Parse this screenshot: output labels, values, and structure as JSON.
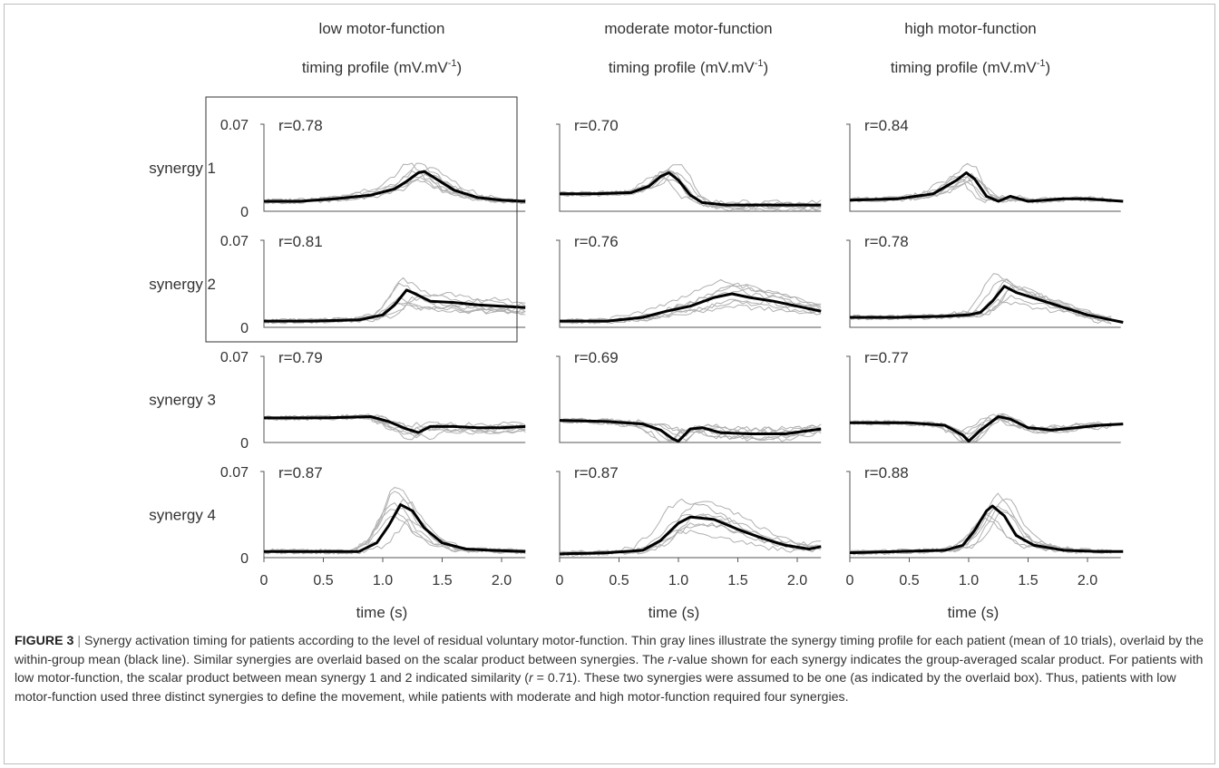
{
  "chart_data": {
    "type": "line",
    "columns": [
      {
        "title_line1": "low motor-function",
        "title_line2": "timing profile (mV.mV",
        "title_sup": "-1",
        "title_close": ")"
      },
      {
        "title_line1": "moderate motor-function",
        "title_line2": "timing profile (mV.mV",
        "title_sup": "-1",
        "title_close": ")"
      },
      {
        "title_line1": "high motor-function",
        "title_line2": "timing profile (mV.mV",
        "title_sup": "-1",
        "title_close": ")"
      }
    ],
    "rows": [
      "synergy 1",
      "synergy 2",
      "synergy 3",
      "synergy 4"
    ],
    "ylim": [
      0,
      0.07
    ],
    "ytick_labels": [
      "0.07",
      "0"
    ],
    "xlim": [
      0,
      2.2
    ],
    "xticks": [
      0,
      0.5,
      1.0,
      1.5,
      2.0
    ],
    "xtick_labels": [
      "0",
      "0.5",
      "1.0",
      "1.5",
      "2.0"
    ],
    "xlabel": "time (s)",
    "highlight_box": "synergy 1 and 2, low motor-function",
    "panels": [
      {
        "column": 0,
        "row": 0,
        "r": "r=0.78",
        "mean": [
          [
            0,
            0.008
          ],
          [
            0.3,
            0.008
          ],
          [
            0.6,
            0.01
          ],
          [
            0.9,
            0.013
          ],
          [
            1.1,
            0.018
          ],
          [
            1.2,
            0.024
          ],
          [
            1.3,
            0.031
          ],
          [
            1.35,
            0.032
          ],
          [
            1.45,
            0.026
          ],
          [
            1.6,
            0.017
          ],
          [
            1.8,
            0.011
          ],
          [
            2.0,
            0.009
          ],
          [
            2.2,
            0.008
          ]
        ]
      },
      {
        "column": 0,
        "row": 1,
        "r": "r=0.81",
        "mean": [
          [
            0,
            0.005
          ],
          [
            0.4,
            0.005
          ],
          [
            0.8,
            0.006
          ],
          [
            1.0,
            0.01
          ],
          [
            1.1,
            0.018
          ],
          [
            1.2,
            0.03
          ],
          [
            1.25,
            0.028
          ],
          [
            1.4,
            0.021
          ],
          [
            1.6,
            0.02
          ],
          [
            1.8,
            0.018
          ],
          [
            2.0,
            0.017
          ],
          [
            2.2,
            0.016
          ]
        ]
      },
      {
        "column": 0,
        "row": 2,
        "r": "r=0.79",
        "mean": [
          [
            0,
            0.02
          ],
          [
            0.5,
            0.02
          ],
          [
            0.9,
            0.021
          ],
          [
            1.05,
            0.017
          ],
          [
            1.2,
            0.011
          ],
          [
            1.3,
            0.008
          ],
          [
            1.4,
            0.013
          ],
          [
            1.6,
            0.013
          ],
          [
            1.8,
            0.012
          ],
          [
            2.0,
            0.012
          ],
          [
            2.2,
            0.013
          ]
        ]
      },
      {
        "column": 0,
        "row": 3,
        "r": "r=0.87",
        "mean": [
          [
            0,
            0.005
          ],
          [
            0.4,
            0.005
          ],
          [
            0.8,
            0.005
          ],
          [
            0.95,
            0.012
          ],
          [
            1.05,
            0.026
          ],
          [
            1.15,
            0.043
          ],
          [
            1.25,
            0.038
          ],
          [
            1.35,
            0.024
          ],
          [
            1.5,
            0.012
          ],
          [
            1.7,
            0.007
          ],
          [
            1.9,
            0.006
          ],
          [
            2.2,
            0.005
          ]
        ]
      },
      {
        "column": 1,
        "row": 0,
        "r": "r=0.70",
        "mean": [
          [
            0,
            0.014
          ],
          [
            0.3,
            0.014
          ],
          [
            0.6,
            0.015
          ],
          [
            0.75,
            0.02
          ],
          [
            0.85,
            0.028
          ],
          [
            0.92,
            0.031
          ],
          [
            1.0,
            0.025
          ],
          [
            1.1,
            0.013
          ],
          [
            1.2,
            0.007
          ],
          [
            1.4,
            0.005
          ],
          [
            1.8,
            0.005
          ],
          [
            2.2,
            0.005
          ]
        ]
      },
      {
        "column": 1,
        "row": 1,
        "r": "r=0.76",
        "mean": [
          [
            0,
            0.005
          ],
          [
            0.4,
            0.005
          ],
          [
            0.7,
            0.008
          ],
          [
            0.9,
            0.013
          ],
          [
            1.1,
            0.017
          ],
          [
            1.3,
            0.024
          ],
          [
            1.45,
            0.027
          ],
          [
            1.6,
            0.024
          ],
          [
            1.8,
            0.021
          ],
          [
            2.0,
            0.017
          ],
          [
            2.2,
            0.013
          ]
        ]
      },
      {
        "column": 1,
        "row": 2,
        "r": "r=0.69",
        "mean": [
          [
            0,
            0.018
          ],
          [
            0.4,
            0.017
          ],
          [
            0.7,
            0.015
          ],
          [
            0.85,
            0.01
          ],
          [
            0.95,
            0.003
          ],
          [
            1.0,
            0.001
          ],
          [
            1.1,
            0.011
          ],
          [
            1.2,
            0.012
          ],
          [
            1.35,
            0.008
          ],
          [
            1.6,
            0.007
          ],
          [
            1.9,
            0.007
          ],
          [
            2.2,
            0.011
          ]
        ]
      },
      {
        "column": 1,
        "row": 3,
        "r": "r=0.87",
        "mean": [
          [
            0,
            0.003
          ],
          [
            0.4,
            0.004
          ],
          [
            0.7,
            0.006
          ],
          [
            0.85,
            0.014
          ],
          [
            1.0,
            0.028
          ],
          [
            1.1,
            0.033
          ],
          [
            1.3,
            0.031
          ],
          [
            1.5,
            0.023
          ],
          [
            1.7,
            0.016
          ],
          [
            1.9,
            0.01
          ],
          [
            2.1,
            0.007
          ],
          [
            2.2,
            0.009
          ]
        ]
      },
      {
        "column": 2,
        "row": 0,
        "r": "r=0.84",
        "mean": [
          [
            0,
            0.009
          ],
          [
            0.4,
            0.01
          ],
          [
            0.7,
            0.014
          ],
          [
            0.9,
            0.025
          ],
          [
            0.98,
            0.031
          ],
          [
            1.05,
            0.026
          ],
          [
            1.15,
            0.012
          ],
          [
            1.25,
            0.008
          ],
          [
            1.35,
            0.012
          ],
          [
            1.5,
            0.008
          ],
          [
            1.8,
            0.01
          ],
          [
            2.0,
            0.01
          ],
          [
            2.3,
            0.008
          ]
        ]
      },
      {
        "column": 2,
        "row": 1,
        "r": "r=0.78",
        "mean": [
          [
            0,
            0.008
          ],
          [
            0.4,
            0.008
          ],
          [
            0.8,
            0.009
          ],
          [
            1.0,
            0.01
          ],
          [
            1.1,
            0.012
          ],
          [
            1.2,
            0.021
          ],
          [
            1.3,
            0.033
          ],
          [
            1.4,
            0.028
          ],
          [
            1.6,
            0.022
          ],
          [
            1.8,
            0.016
          ],
          [
            2.0,
            0.01
          ],
          [
            2.2,
            0.006
          ],
          [
            2.3,
            0.004
          ]
        ]
      },
      {
        "column": 2,
        "row": 2,
        "r": "r=0.77",
        "mean": [
          [
            0,
            0.016
          ],
          [
            0.5,
            0.016
          ],
          [
            0.8,
            0.014
          ],
          [
            0.95,
            0.006
          ],
          [
            1.0,
            0.001
          ],
          [
            1.1,
            0.01
          ],
          [
            1.25,
            0.021
          ],
          [
            1.35,
            0.019
          ],
          [
            1.5,
            0.012
          ],
          [
            1.7,
            0.01
          ],
          [
            1.9,
            0.012
          ],
          [
            2.1,
            0.014
          ],
          [
            2.3,
            0.015
          ]
        ]
      },
      {
        "column": 2,
        "row": 3,
        "r": "r=0.88",
        "mean": [
          [
            0,
            0.004
          ],
          [
            0.4,
            0.005
          ],
          [
            0.8,
            0.006
          ],
          [
            0.95,
            0.01
          ],
          [
            1.05,
            0.022
          ],
          [
            1.15,
            0.038
          ],
          [
            1.2,
            0.042
          ],
          [
            1.3,
            0.034
          ],
          [
            1.4,
            0.018
          ],
          [
            1.55,
            0.01
          ],
          [
            1.8,
            0.006
          ],
          [
            2.1,
            0.005
          ],
          [
            2.3,
            0.005
          ]
        ]
      }
    ]
  },
  "caption": {
    "label": "FIGURE 3",
    "separator": " | ",
    "text_1": "Synergy activation timing for patients according to the level of residual voluntary motor-function. Thin gray lines illustrate the synergy timing profile for each patient (mean of 10 trials), overlaid by the within-group mean (black line). Similar synergies are overlaid based on the scalar product between synergies. The ",
    "text_r1": "r",
    "text_2": "-value shown for each synergy indicates the group-averaged scalar product. For patients with low motor-function, the scalar product between mean synergy 1 and 2 indicated similarity (",
    "text_r2": "r",
    "text_3": " = 0.71). These two synergies were assumed to be one (as indicated by the overlaid box). Thus, patients with low motor-function used three distinct synergies to define the movement, while patients with moderate and high motor-function required four synergies."
  }
}
